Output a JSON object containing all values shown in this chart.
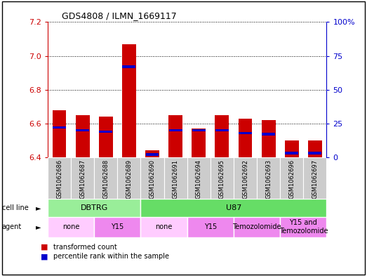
{
  "title": "GDS4808 / ILMN_1669117",
  "samples": [
    "GSM1062686",
    "GSM1062687",
    "GSM1062688",
    "GSM1062689",
    "GSM1062690",
    "GSM1062691",
    "GSM1062694",
    "GSM1062695",
    "GSM1062692",
    "GSM1062693",
    "GSM1062696",
    "GSM1062697"
  ],
  "transformed_count": [
    6.68,
    6.65,
    6.64,
    7.07,
    6.44,
    6.65,
    6.57,
    6.65,
    6.63,
    6.62,
    6.5,
    6.5
  ],
  "percentile_rank": [
    22,
    20,
    19,
    67,
    2,
    20,
    20,
    20,
    18,
    17,
    3,
    3
  ],
  "ylim_left": [
    6.4,
    7.2
  ],
  "ylim_right": [
    0,
    100
  ],
  "yticks_left": [
    6.4,
    6.6,
    6.8,
    7.0,
    7.2
  ],
  "yticks_right": [
    0,
    25,
    50,
    75,
    100
  ],
  "bar_color": "#cc0000",
  "percentile_color": "#0000cc",
  "bar_width": 0.6,
  "cell_line_groups": [
    {
      "label": "DBTRG",
      "start": 0,
      "end": 3,
      "color": "#99ee99"
    },
    {
      "label": "U87",
      "start": 4,
      "end": 11,
      "color": "#66dd66"
    }
  ],
  "agent_groups": [
    {
      "label": "none",
      "start": 0,
      "end": 1,
      "color": "#ffccff"
    },
    {
      "label": "Y15",
      "start": 2,
      "end": 3,
      "color": "#ee88ee"
    },
    {
      "label": "none",
      "start": 4,
      "end": 5,
      "color": "#ffccff"
    },
    {
      "label": "Y15",
      "start": 6,
      "end": 7,
      "color": "#ee88ee"
    },
    {
      "label": "Temozolomide",
      "start": 8,
      "end": 9,
      "color": "#ee88ee"
    },
    {
      "label": "Y15 and\nTemozolomide",
      "start": 10,
      "end": 11,
      "color": "#ee88ee"
    }
  ],
  "legend_items": [
    {
      "label": "transformed count",
      "color": "#cc0000"
    },
    {
      "label": "percentile rank within the sample",
      "color": "#0000cc"
    }
  ],
  "grid_color": "black",
  "background_color": "white",
  "axis_color_left": "#cc0000",
  "axis_color_right": "#0000cc",
  "sample_bg_color": "#cccccc"
}
